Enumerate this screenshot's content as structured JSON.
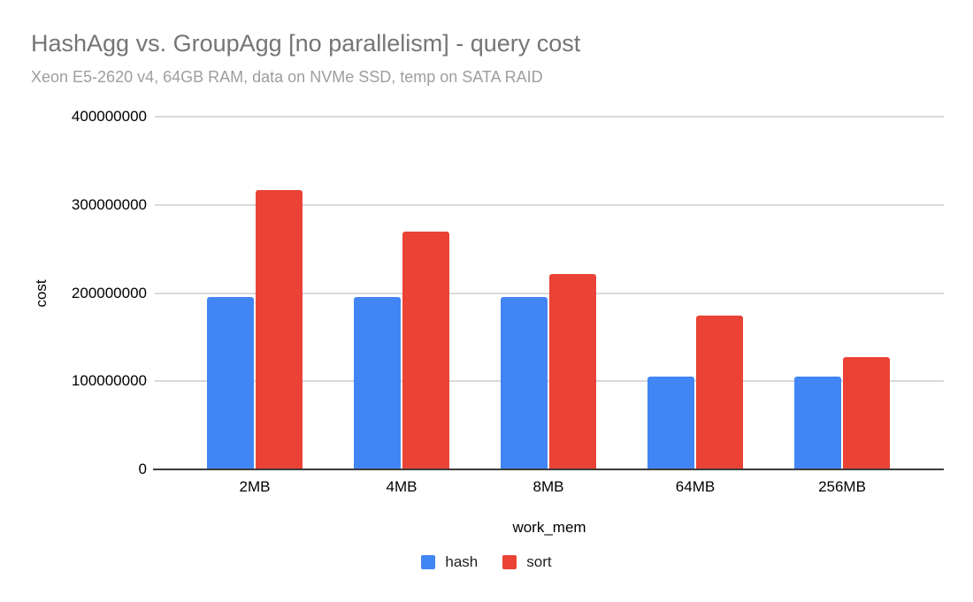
{
  "chart_data": {
    "type": "bar",
    "title": "HashAgg vs. GroupAgg [no parallelism] - query cost",
    "subtitle": "Xeon E5-2620 v4, 64GB RAM, data on NVMe SSD, temp on SATA RAID",
    "xlabel": "work_mem",
    "ylabel": "cost",
    "categories": [
      "2MB",
      "4MB",
      "8MB",
      "64MB",
      "256MB"
    ],
    "series": [
      {
        "name": "hash",
        "color": "#4285F4",
        "values": [
          196000000,
          196000000,
          196000000,
          105000000,
          105000000
        ]
      },
      {
        "name": "sort",
        "color": "#EA4335",
        "values": [
          317000000,
          270000000,
          222000000,
          174000000,
          127000000
        ]
      }
    ],
    "ylim": [
      0,
      400000000
    ],
    "yticks": [
      400000000,
      300000000,
      200000000,
      100000000,
      0
    ],
    "ytick_labels": [
      "400000000",
      "300000000",
      "200000000",
      "100000000",
      "0"
    ],
    "grid": true,
    "legend_position": "bottom",
    "colors": {
      "gridline": "#d9d9d9",
      "baseline": "#3c3c3c",
      "title_text": "#757575",
      "subtitle_text": "#9e9e9e",
      "axis_text": "#000000"
    }
  }
}
